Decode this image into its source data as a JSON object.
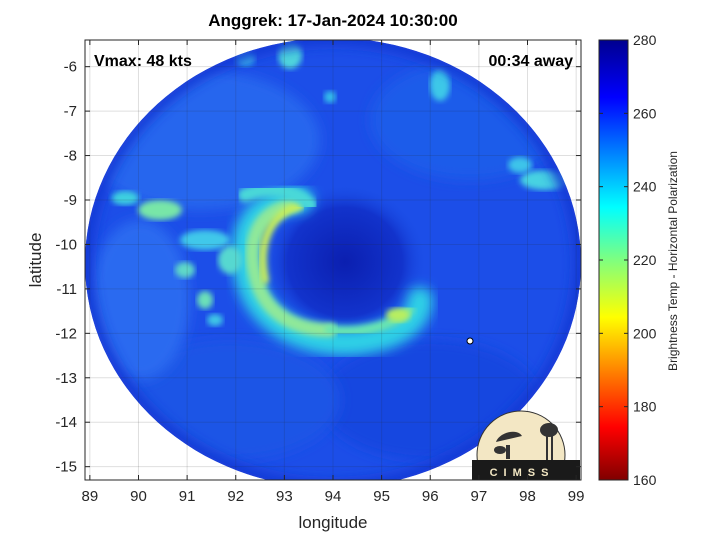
{
  "title": "Anggrek: 17-Jan-2024 10:30:00",
  "vmax_label": "Vmax: 48 kts",
  "away_label": "00:34 away",
  "x_axis": {
    "label": "longitude",
    "range": [
      88.9,
      99.1
    ],
    "ticks": [
      "89",
      "90",
      "91",
      "92",
      "93",
      "94",
      "95",
      "96",
      "97",
      "98",
      "99"
    ]
  },
  "y_axis": {
    "label": "latitude",
    "range": [
      -15.3,
      -5.4
    ],
    "ticks": [
      "-6",
      "-7",
      "-8",
      "-9",
      "-10",
      "-11",
      "-12",
      "-13",
      "-14",
      "-15"
    ]
  },
  "colorbar": {
    "label": "Brightness Temp - Horizontal Polarization",
    "range": [
      160,
      280
    ],
    "ticks": [
      "160",
      "180",
      "200",
      "220",
      "240",
      "260",
      "280"
    ],
    "colormap": "jet"
  },
  "logo": {
    "text": "CIMSS"
  },
  "colors": {
    "background_scan": "#1a4fe6",
    "eye": "#0f2cc0",
    "rainband_warm": "#aee860",
    "rainband_cool": "#2fd0e6",
    "plot_border": "#262626"
  }
}
